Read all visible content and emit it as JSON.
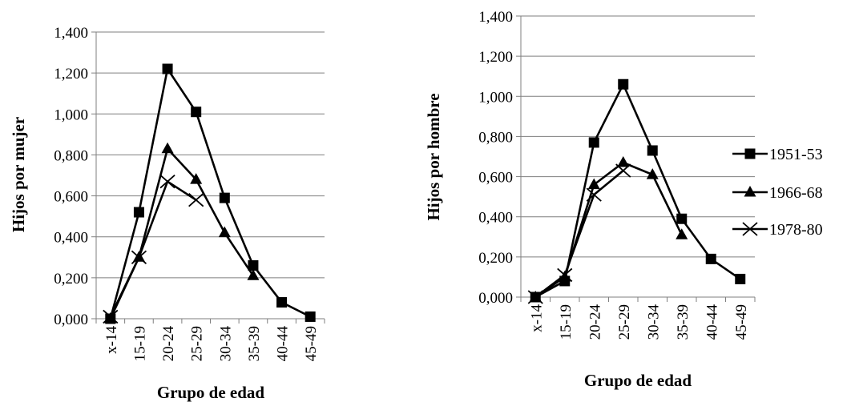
{
  "chart_data": [
    {
      "type": "line",
      "title": "",
      "xlabel": "Grupo de edad",
      "ylabel": "Hijos por mujer",
      "categories": [
        "x-14",
        "15-19",
        "20-24",
        "25-29",
        "30-34",
        "35-39",
        "40-44",
        "45-49"
      ],
      "ylim": [
        0,
        1.4
      ],
      "yticks": [
        "0,000",
        "0,200",
        "0,400",
        "0,600",
        "0,800",
        "1,000",
        "1,200",
        "1,400"
      ],
      "grid": "horizontal",
      "series": [
        {
          "name": "1951-53",
          "marker": "square",
          "values": [
            0.0,
            0.52,
            1.22,
            1.01,
            0.59,
            0.26,
            0.08,
            0.01
          ]
        },
        {
          "name": "1966-68",
          "marker": "triangle",
          "values": [
            0.0,
            0.3,
            0.83,
            0.68,
            0.42,
            0.21,
            null,
            null
          ]
        },
        {
          "name": "1978-80",
          "marker": "x",
          "values": [
            0.01,
            0.3,
            0.67,
            0.58,
            null,
            null,
            null,
            null
          ]
        }
      ]
    },
    {
      "type": "line",
      "title": "",
      "xlabel": "Grupo de edad",
      "ylabel": "Hijos por hombre",
      "categories": [
        "x-14",
        "15-19",
        "20-24",
        "25-29",
        "30-34",
        "35-39",
        "40-44",
        "45-49"
      ],
      "ylim": [
        0,
        1.4
      ],
      "yticks": [
        "0,000",
        "0,200",
        "0,400",
        "0,600",
        "0,800",
        "1,000",
        "1,200",
        "1,400"
      ],
      "grid": "horizontal",
      "legend_position": "right",
      "series": [
        {
          "name": "1951-53",
          "marker": "square",
          "values": [
            0.0,
            0.08,
            0.77,
            1.06,
            0.73,
            0.39,
            0.19,
            0.09
          ]
        },
        {
          "name": "1966-68",
          "marker": "triangle",
          "values": [
            0.0,
            0.1,
            0.56,
            0.67,
            0.61,
            0.31,
            null,
            null
          ]
        },
        {
          "name": "1978-80",
          "marker": "x",
          "values": [
            0.0,
            0.11,
            0.51,
            0.63,
            null,
            null,
            null,
            null
          ]
        }
      ]
    }
  ]
}
